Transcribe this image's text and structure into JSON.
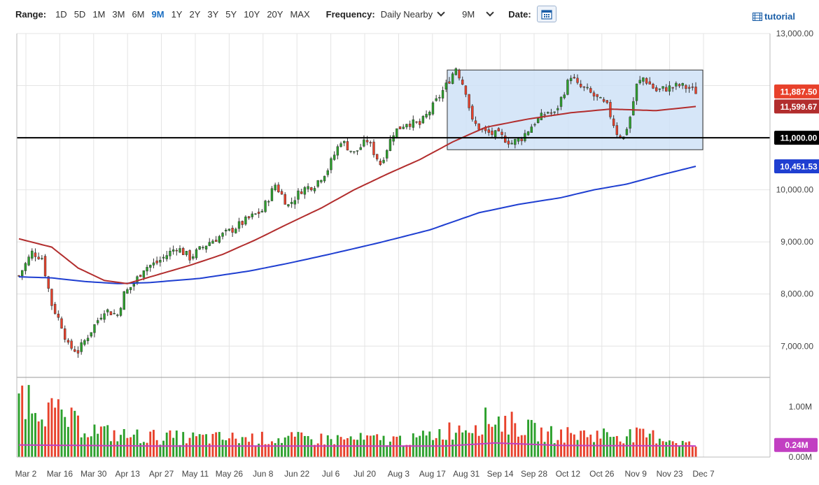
{
  "toolbar": {
    "range_label": "Range:",
    "ranges": [
      "1D",
      "5D",
      "1M",
      "3M",
      "6M",
      "9M",
      "1Y",
      "2Y",
      "3Y",
      "5Y",
      "10Y",
      "20Y",
      "MAX"
    ],
    "active_range": "9M",
    "frequency_label": "Frequency:",
    "frequency_value": "Daily Nearby",
    "period_value": "9M",
    "date_label": "Date:",
    "tutorial_label": "tutorial"
  },
  "colors": {
    "up": "#2ca02c",
    "down": "#e8412b",
    "ma_short": "#b22d2d",
    "ma_long": "#1f3fd1",
    "volume_avg": "#c23fc2",
    "box_fill": "#cfe2f7",
    "box_stroke": "#333333",
    "label_last": "#e8412b",
    "label_ma_short": "#b22d2d",
    "label_ma_long": "#1f3fd1",
    "label_level": "#000000",
    "label_vol": "#c23fc2"
  },
  "chart_data": {
    "type": "candlestick",
    "x_ticks": [
      "Mar 2",
      "Mar 16",
      "Mar 30",
      "Apr 13",
      "Apr 27",
      "May 11",
      "May 26",
      "Jun 8",
      "Jun 22",
      "Jul 6",
      "Jul 20",
      "Aug 3",
      "Aug 17",
      "Aug 31",
      "Sep 14",
      "Sep 28",
      "Oct 12",
      "Oct 26",
      "Nov 9",
      "Nov 23",
      "Dec 7"
    ],
    "y_ticks": [
      "13,000.00",
      "11,000.00",
      "10,000.00",
      "9,000.00",
      "8,000.00",
      "7,000.00"
    ],
    "ylim": [
      6400,
      13000
    ],
    "volume_ticks": [
      "1.00M",
      "0.00M"
    ],
    "volume_ylim": [
      0,
      1500000
    ],
    "price_labels": {
      "last": "11,887.50",
      "ma_short": "11,599.67",
      "level": "11,000.00",
      "ma_long": "10,451.53",
      "volume_last": "0.24M"
    },
    "horizontal_level": 11000,
    "range_box": {
      "start_index": 131,
      "end_index": 191,
      "low": 10770,
      "high": 12300
    },
    "anchors": [
      [
        0,
        8350
      ],
      [
        4,
        8800
      ],
      [
        7,
        8700
      ],
      [
        10,
        7800
      ],
      [
        13,
        7400
      ],
      [
        15,
        7000
      ],
      [
        18,
        6900
      ],
      [
        20,
        7100
      ],
      [
        23,
        7400
      ],
      [
        26,
        7700
      ],
      [
        30,
        7600
      ],
      [
        32,
        8000
      ],
      [
        35,
        8200
      ],
      [
        38,
        8500
      ],
      [
        42,
        8600
      ],
      [
        48,
        8900
      ],
      [
        52,
        8700
      ],
      [
        58,
        9000
      ],
      [
        64,
        9200
      ],
      [
        70,
        9450
      ],
      [
        74,
        9600
      ],
      [
        78,
        10100
      ],
      [
        82,
        9700
      ],
      [
        86,
        10000
      ],
      [
        90,
        10100
      ],
      [
        94,
        10400
      ],
      [
        98,
        10950
      ],
      [
        102,
        10700
      ],
      [
        106,
        10950
      ],
      [
        110,
        10500
      ],
      [
        114,
        11100
      ],
      [
        118,
        11300
      ],
      [
        122,
        11250
      ],
      [
        126,
        11600
      ],
      [
        130,
        12000
      ],
      [
        133,
        12350
      ],
      [
        136,
        11900
      ],
      [
        138,
        11300
      ],
      [
        142,
        11100
      ],
      [
        146,
        11050
      ],
      [
        150,
        10900
      ],
      [
        153,
        11000
      ],
      [
        157,
        11300
      ],
      [
        161,
        11500
      ],
      [
        163,
        11450
      ],
      [
        166,
        11900
      ],
      [
        168,
        12200
      ],
      [
        170,
        12000
      ],
      [
        173,
        11900
      ],
      [
        176,
        11750
      ],
      [
        179,
        11600
      ],
      [
        182,
        11100
      ],
      [
        184,
        11000
      ],
      [
        186,
        11400
      ],
      [
        188,
        12000
      ],
      [
        190,
        12150
      ],
      [
        194,
        11900
      ],
      [
        197,
        11950
      ],
      [
        201,
        12000
      ],
      [
        204,
        11950
      ],
      [
        206,
        11887.5
      ]
    ],
    "ma_short": [
      [
        0,
        9060
      ],
      [
        10,
        8900
      ],
      [
        18,
        8500
      ],
      [
        26,
        8260
      ],
      [
        33,
        8200
      ],
      [
        40,
        8330
      ],
      [
        52,
        8550
      ],
      [
        62,
        8760
      ],
      [
        72,
        9040
      ],
      [
        82,
        9350
      ],
      [
        92,
        9650
      ],
      [
        102,
        10000
      ],
      [
        112,
        10300
      ],
      [
        122,
        10580
      ],
      [
        132,
        10920
      ],
      [
        142,
        11200
      ],
      [
        155,
        11360
      ],
      [
        168,
        11480
      ],
      [
        180,
        11550
      ],
      [
        194,
        11520
      ],
      [
        206,
        11599.67
      ]
    ],
    "ma_long": [
      [
        0,
        8330
      ],
      [
        10,
        8310
      ],
      [
        20,
        8240
      ],
      [
        30,
        8200
      ],
      [
        40,
        8220
      ],
      [
        55,
        8300
      ],
      [
        70,
        8440
      ],
      [
        82,
        8590
      ],
      [
        95,
        8770
      ],
      [
        110,
        8990
      ],
      [
        125,
        9230
      ],
      [
        140,
        9560
      ],
      [
        152,
        9720
      ],
      [
        165,
        9850
      ],
      [
        175,
        10000
      ],
      [
        185,
        10110
      ],
      [
        195,
        10280
      ],
      [
        206,
        10451.53
      ]
    ],
    "volume_avg": 220000,
    "volume_profile": [
      [
        0,
        1450000
      ],
      [
        10,
        1000000
      ],
      [
        20,
        650000
      ],
      [
        30,
        480000
      ],
      [
        50,
        420000
      ],
      [
        90,
        400000
      ],
      [
        120,
        380000
      ],
      [
        134,
        650000
      ],
      [
        145,
        850000
      ],
      [
        160,
        500000
      ],
      [
        180,
        500000
      ],
      [
        195,
        450000
      ],
      [
        206,
        240000
      ]
    ]
  }
}
